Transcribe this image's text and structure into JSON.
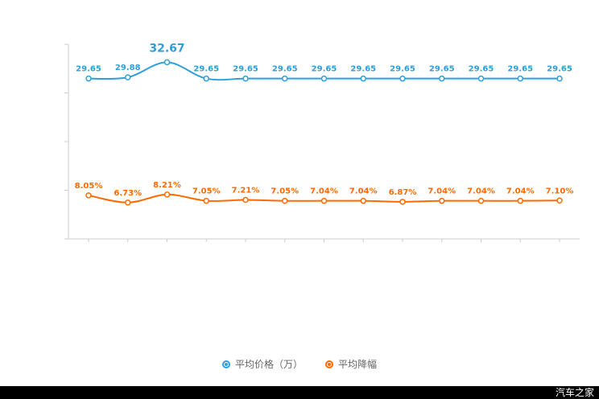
{
  "watermark": "汽车之家",
  "legend": {
    "series1": "平均价格（万）",
    "series2": "平均降幅"
  },
  "chart_data": {
    "type": "line",
    "title": "",
    "xlabel": "",
    "ylabel": "",
    "ylim": [
      0,
      36
    ],
    "grid": false,
    "legend_position": "bottom",
    "axis_color": "#cccccc",
    "x": [
      1,
      2,
      3,
      4,
      5,
      6,
      7,
      8,
      9,
      10,
      11,
      12,
      13
    ],
    "series": [
      {
        "name": "平均价格（万）",
        "color": "#2E9FD8",
        "emphasis_index": 2,
        "values": [
          29.65,
          29.88,
          32.67,
          29.65,
          29.65,
          29.65,
          29.65,
          29.65,
          29.65,
          29.65,
          29.65,
          29.65,
          29.65
        ],
        "labels": [
          "29.65",
          "29.88",
          "32.67",
          "29.65",
          "29.65",
          "29.65",
          "29.65",
          "29.65",
          "29.65",
          "29.65",
          "29.65",
          "29.65",
          "29.65"
        ]
      },
      {
        "name": "平均降幅",
        "color": "#FF6A00",
        "emphasis_index": -1,
        "values": [
          8.05,
          6.73,
          8.21,
          7.05,
          7.21,
          7.05,
          7.04,
          7.04,
          6.87,
          7.04,
          7.04,
          7.04,
          7.1
        ],
        "labels": [
          "8.05%",
          "6.73%",
          "8.21%",
          "7.05%",
          "7.21%",
          "7.05%",
          "7.04%",
          "7.04%",
          "6.87%",
          "7.04%",
          "7.04%",
          "7.04%",
          "7.10%"
        ]
      }
    ]
  }
}
